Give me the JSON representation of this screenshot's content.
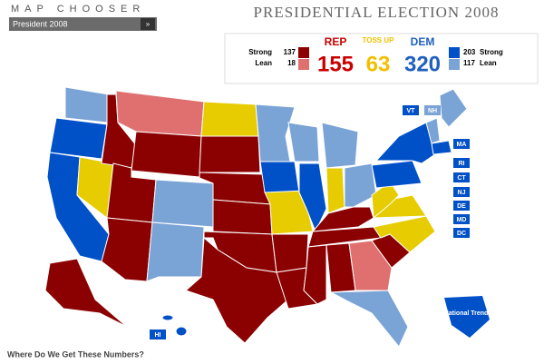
{
  "header": {
    "chooser_title": "MAP CHOOSER",
    "dropdown": "President 2008",
    "title": "PRESIDENTIAL ELECTION 2008"
  },
  "summary": {
    "rep": {
      "label": "REP",
      "total": 155,
      "strong_label": "Strong",
      "strong": 137,
      "lean_label": "Lean",
      "lean": 18
    },
    "tossup": {
      "label": "TOSS UP",
      "total": 63
    },
    "dem": {
      "label": "DEM",
      "total": 320,
      "strong_label": "Strong",
      "strong": 203,
      "lean_label": "Lean",
      "lean": 117
    }
  },
  "map": {
    "state_labels": [
      "VT",
      "NH",
      "MA",
      "RI",
      "CT",
      "NJ",
      "DE",
      "MD",
      "DC",
      "HI"
    ],
    "national_trend": "National Trend"
  },
  "footer": {
    "link": "Where Do We Get These Numbers?"
  }
}
